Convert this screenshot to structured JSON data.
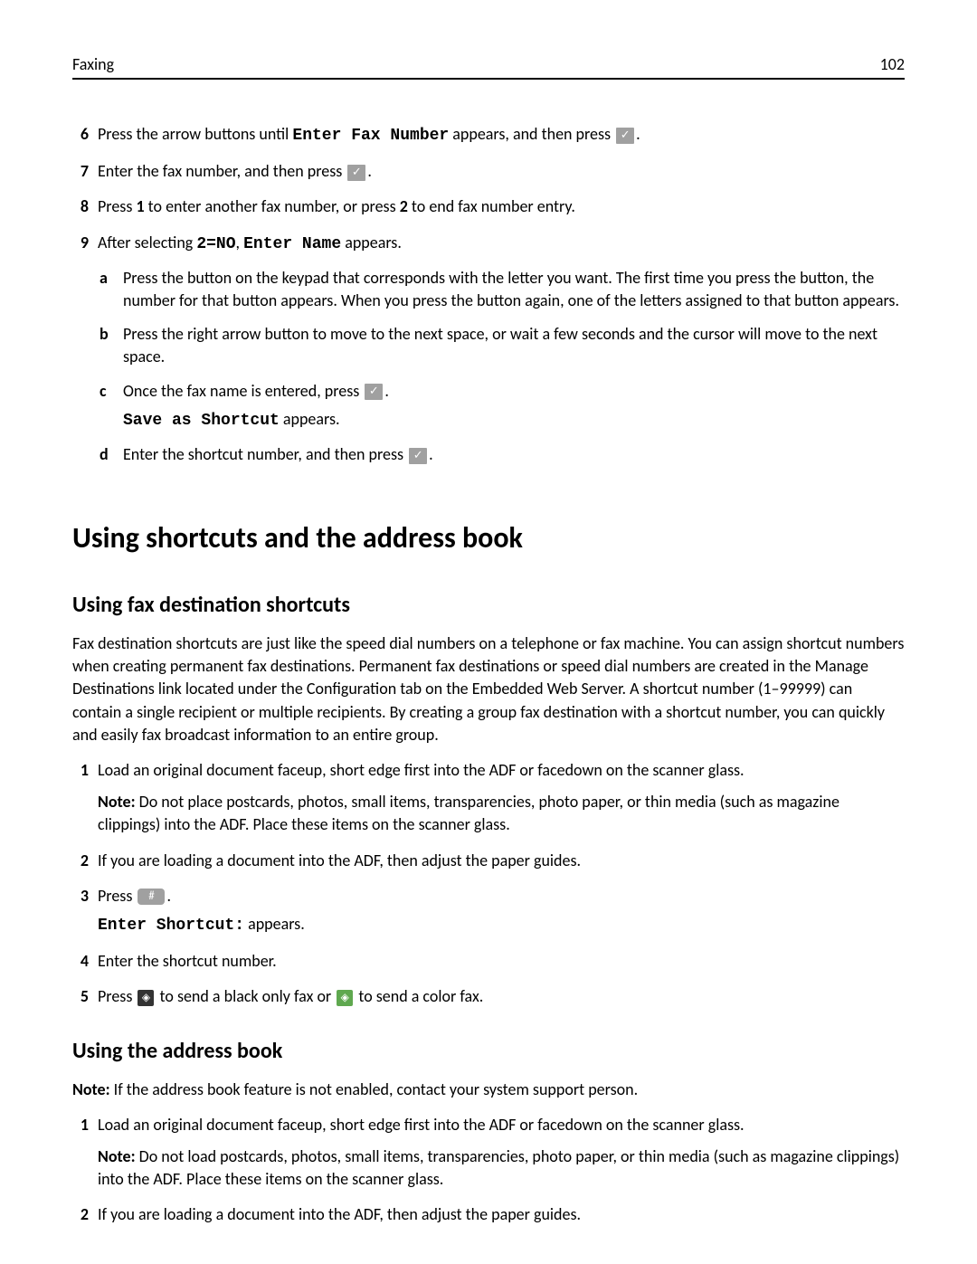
{
  "header": {
    "section": "Faxing",
    "page": "102"
  },
  "steps_top": {
    "s6": {
      "num": "6",
      "pre": "Press the arrow buttons until ",
      "mono": "Enter Fax Number",
      "mid": " appears, and then press ",
      "post": "."
    },
    "s7": {
      "num": "7",
      "pre": "Enter the fax number, and then press ",
      "post": "."
    },
    "s8": {
      "num": "8",
      "text": "Press 1 to enter another fax number, or press 2 to end fax number entry."
    },
    "s8_bold1": "1",
    "s8_bold2": "2",
    "s8_p1": "Press ",
    "s8_p2": " to enter another fax number, or press ",
    "s8_p3": " to end fax number entry.",
    "s9": {
      "num": "9",
      "pre": "After selecting ",
      "mono1": "2=NO",
      "mid": ", ",
      "mono2": "Enter Name",
      "post": " appears."
    },
    "sub": {
      "a": {
        "letter": "a",
        "text": "Press the button on the keypad that corresponds with the letter you want. The first time you press the button, the number for that button appears. When you press the button again, one of the letters assigned to that button appears."
      },
      "b": {
        "letter": "b",
        "text": "Press the right arrow button to move to the next space, or wait a few seconds and the cursor will move to the next space."
      },
      "c": {
        "letter": "c",
        "pre": "Once the fax name is entered, press ",
        "post": ".",
        "line2_mono": "Save as Shortcut",
        "line2_post": " appears."
      },
      "d": {
        "letter": "d",
        "pre": "Enter the shortcut number, and then press ",
        "post": "."
      }
    }
  },
  "h1": "Using shortcuts and the address book",
  "section1": {
    "h2": "Using fax destination shortcuts",
    "intro": "Fax destination shortcuts are just like the speed dial numbers on a telephone or fax machine. You can assign shortcut numbers when creating permanent fax destinations. Permanent fax destinations or speed dial numbers are created in the Manage Destinations link located under the Configuration tab on the Embedded Web Server. A shortcut number (1–99999) can contain a single recipient or multiple recipients. By creating a group fax destination with a shortcut number, you can quickly and easily fax broadcast information to an entire group.",
    "s1": {
      "num": "1",
      "text": "Load an original document faceup, short edge first into the ADF or facedown on the scanner glass.",
      "note_label": "Note:",
      "note": " Do not place postcards, photos, small items, transparencies, photo paper, or thin media (such as magazine clippings) into the ADF. Place these items on the scanner glass."
    },
    "s2": {
      "num": "2",
      "text": "If you are loading a document into the ADF, then adjust the paper guides."
    },
    "s3": {
      "num": "3",
      "pre": "Press ",
      "post": ".",
      "line2_mono": "Enter Shortcut:",
      "line2_post": " appears."
    },
    "s4": {
      "num": "4",
      "text": "Enter the shortcut number."
    },
    "s5": {
      "num": "5",
      "pre": "Press ",
      "mid": " to send a black only fax or ",
      "post": " to send a color fax."
    }
  },
  "section2": {
    "h2": "Using the address book",
    "note_label": "Note:",
    "note": " If the address book feature is not enabled, contact your system support person.",
    "s1": {
      "num": "1",
      "text": "Load an original document faceup, short edge first into the ADF or facedown on the scanner glass.",
      "note_label": "Note:",
      "note_text": " Do not load postcards, photos, small items, transparencies, photo paper, or thin media (such as magazine clippings) into the ADF. Place these items on the scanner glass."
    },
    "s2": {
      "num": "2",
      "text": "If you are loading a document into the ADF, then adjust the paper guides."
    }
  }
}
